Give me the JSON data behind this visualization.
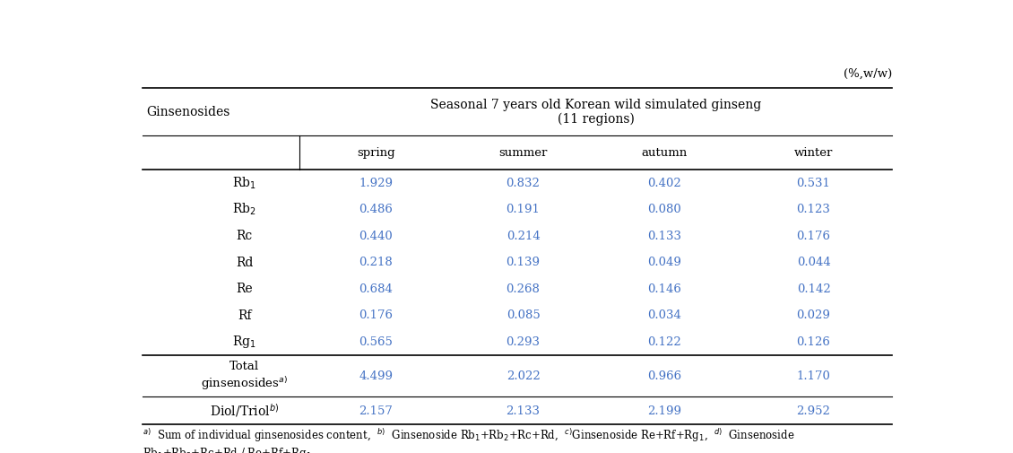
{
  "unit_label": "(%,w/w)",
  "col_header_main": "Seasonal 7 years old Korean wild simulated ginseng\n(11 regions)",
  "col_header_sub": [
    "spring",
    "summer",
    "autumn",
    "winter"
  ],
  "data": [
    [
      "1.929",
      "0.832",
      "0.402",
      "0.531"
    ],
    [
      "0.486",
      "0.191",
      "0.080",
      "0.123"
    ],
    [
      "0.440",
      "0.214",
      "0.133",
      "0.176"
    ],
    [
      "0.218",
      "0.139",
      "0.049",
      "0.044"
    ],
    [
      "0.684",
      "0.268",
      "0.146",
      "0.142"
    ],
    [
      "0.176",
      "0.085",
      "0.034",
      "0.029"
    ],
    [
      "0.565",
      "0.293",
      "0.122",
      "0.126"
    ],
    [
      "4.499",
      "2.022",
      "0.966",
      "1.170"
    ],
    [
      "2.157",
      "2.133",
      "2.199",
      "2.952"
    ]
  ],
  "text_color_data": "#4472c4",
  "text_color_header": "#000000",
  "text_color_label": "#000000",
  "text_color_footnote": "#000000",
  "bg_color": "#ffffff",
  "font_size_data": 9.5,
  "font_size_header": 10,
  "font_size_label": 10,
  "font_size_unit": 9.5,
  "font_size_footnote": 8.5
}
